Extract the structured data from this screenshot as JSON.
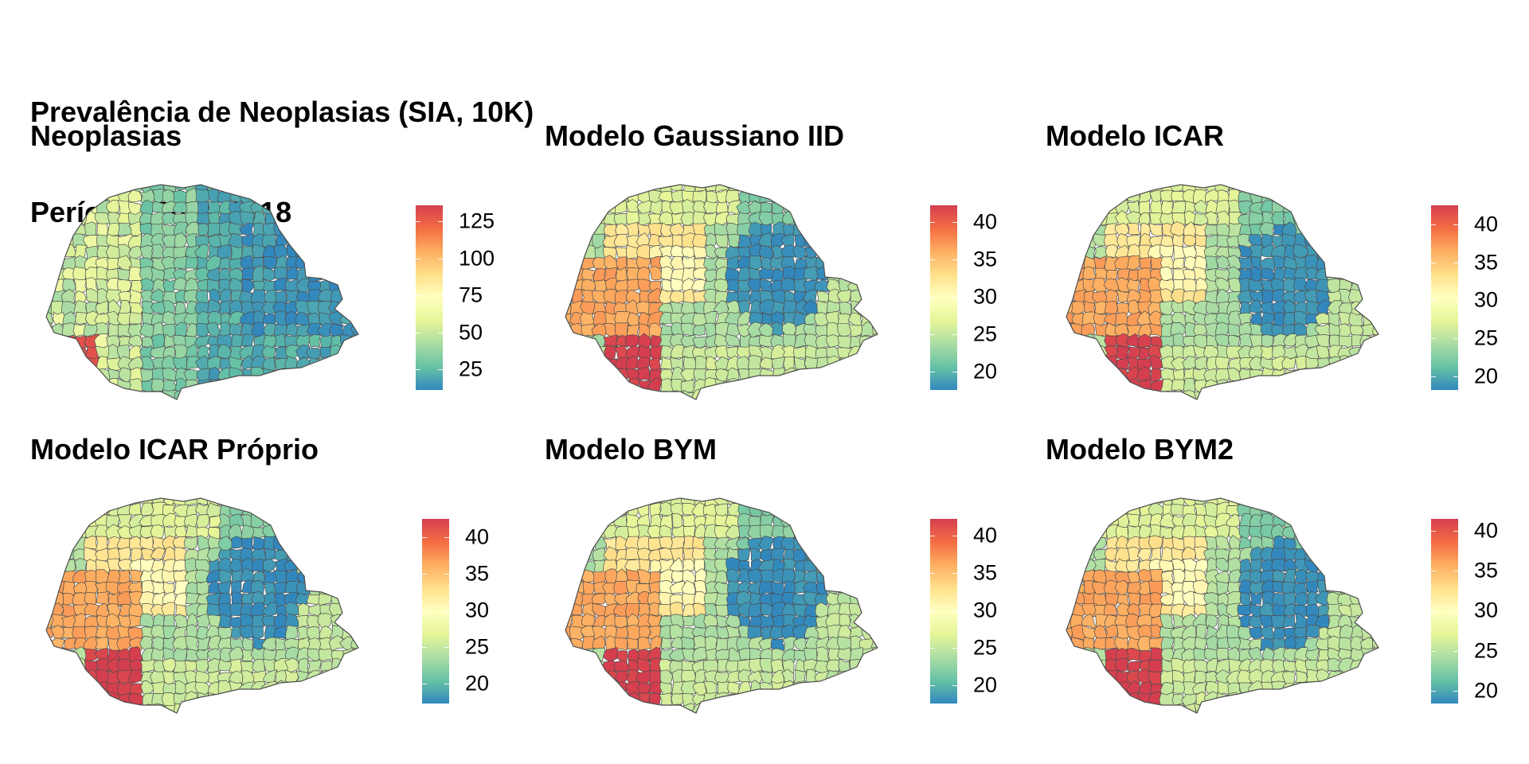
{
  "title": {
    "line1": "Prevalência de Neoplasias (SIA, 10K)",
    "line2": "Período: 2014:2018"
  },
  "colors": {
    "ramp": [
      "#3288bd",
      "#66c2a5",
      "#abdda4",
      "#e6f598",
      "#ffffbf",
      "#fee08b",
      "#fdae61",
      "#f46d43",
      "#d53e4f"
    ],
    "border": "#4d4d4d"
  },
  "panels": [
    {
      "title": "Neoplasias",
      "legend": {
        "min": 11,
        "max": 136,
        "ticks": [
          "125",
          "100",
          "75",
          "50",
          "25"
        ],
        "tick_values": [
          125,
          100,
          75,
          50,
          25
        ]
      }
    },
    {
      "title": "Modelo Gaussiano IID",
      "legend": {
        "min": 17.5,
        "max": 42.2,
        "ticks": [
          "40",
          "35",
          "30",
          "25",
          "20"
        ],
        "tick_values": [
          40,
          35,
          30,
          25,
          20
        ]
      }
    },
    {
      "title": "Modelo ICAR",
      "legend": {
        "min": 18.2,
        "max": 42.5,
        "ticks": [
          "40",
          "35",
          "30",
          "25",
          "20"
        ],
        "tick_values": [
          40,
          35,
          30,
          25,
          20
        ]
      }
    },
    {
      "title": "Modelo ICAR Próprio",
      "legend": {
        "min": 17.3,
        "max": 42.5,
        "ticks": [
          "40",
          "35",
          "30",
          "25",
          "20"
        ],
        "tick_values": [
          40,
          35,
          30,
          25,
          20
        ]
      }
    },
    {
      "title": "Modelo BYM",
      "legend": {
        "min": 17.5,
        "max": 42.2,
        "ticks": [
          "40",
          "35",
          "30",
          "25",
          "20"
        ],
        "tick_values": [
          40,
          35,
          30,
          25,
          20
        ]
      }
    },
    {
      "title": "Modelo BYM2",
      "legend": {
        "min": 18.4,
        "max": 41.5,
        "ticks": [
          "40",
          "35",
          "30",
          "25",
          "20"
        ],
        "tick_values": [
          40,
          35,
          30,
          25,
          20
        ]
      }
    }
  ]
}
